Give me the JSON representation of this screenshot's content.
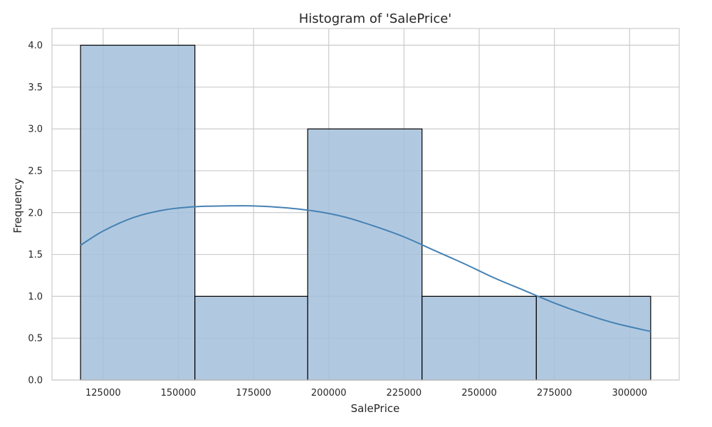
{
  "chart_data": {
    "type": "bar",
    "title": "Histogram of 'SalePrice'",
    "xlabel": "SalePrice",
    "ylabel": "Frequency",
    "xlim": [
      108000,
      316500
    ],
    "ylim": [
      0,
      4.2
    ],
    "xticks": [
      125000,
      150000,
      175000,
      200000,
      225000,
      250000,
      275000,
      300000
    ],
    "xtick_labels": [
      "125000",
      "150000",
      "175000",
      "200000",
      "225000",
      "250000",
      "275000",
      "300000"
    ],
    "yticks": [
      0,
      0.5,
      1,
      1.5,
      2,
      2.5,
      3,
      3.5,
      4
    ],
    "ytick_labels": [
      "0.0",
      "0.5",
      "1.0",
      "1.5",
      "2.0",
      "2.5",
      "3.0",
      "3.5",
      "4.0"
    ],
    "bins": [
      {
        "start": 117500,
        "end": 155500,
        "count": 4
      },
      {
        "start": 155500,
        "end": 193000,
        "count": 1
      },
      {
        "start": 193000,
        "end": 231000,
        "count": 3
      },
      {
        "start": 231000,
        "end": 269000,
        "count": 1
      },
      {
        "start": 269000,
        "end": 307000,
        "count": 1
      }
    ],
    "kde": {
      "x": [
        117500,
        125000,
        135000,
        145000,
        155000,
        165000,
        175000,
        185000,
        195000,
        205000,
        215000,
        225000,
        235000,
        245000,
        255000,
        265000,
        275000,
        285000,
        295000,
        307000
      ],
      "y": [
        1.61,
        1.78,
        1.94,
        2.03,
        2.07,
        2.08,
        2.08,
        2.06,
        2.02,
        1.95,
        1.84,
        1.71,
        1.55,
        1.39,
        1.22,
        1.07,
        0.92,
        0.79,
        0.68,
        0.58
      ]
    },
    "grid": true,
    "colors": {
      "bar_fill": "#a3bfda",
      "bar_edge": "#000000",
      "kde_line": "#4682b4",
      "grid": "#cccccc",
      "spine": "#cccccc"
    }
  }
}
